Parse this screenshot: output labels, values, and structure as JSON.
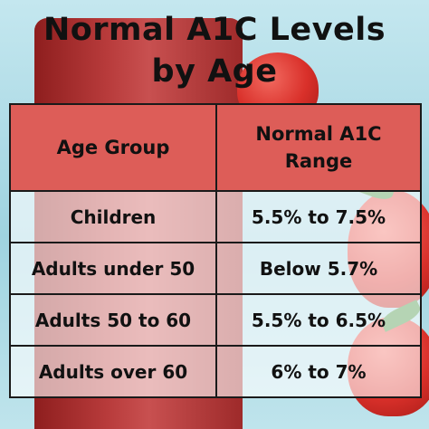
{
  "title": "Normal A1C Levels\nby Age",
  "colors": {
    "header_bg": "#dd5d58",
    "text": "#111111",
    "border": "#1a1a1a"
  },
  "table": {
    "headers": [
      "Age Group",
      "Normal A1C\nRange"
    ],
    "rows": [
      {
        "age_group": "Children",
        "range": "5.5% to 7.5%"
      },
      {
        "age_group": "Adults under 50",
        "range": "Below 5.7%"
      },
      {
        "age_group": "Adults 50 to 60",
        "range": "5.5% to 6.5%"
      },
      {
        "age_group": "Adults over 60",
        "range": "6% to 7%"
      }
    ]
  }
}
